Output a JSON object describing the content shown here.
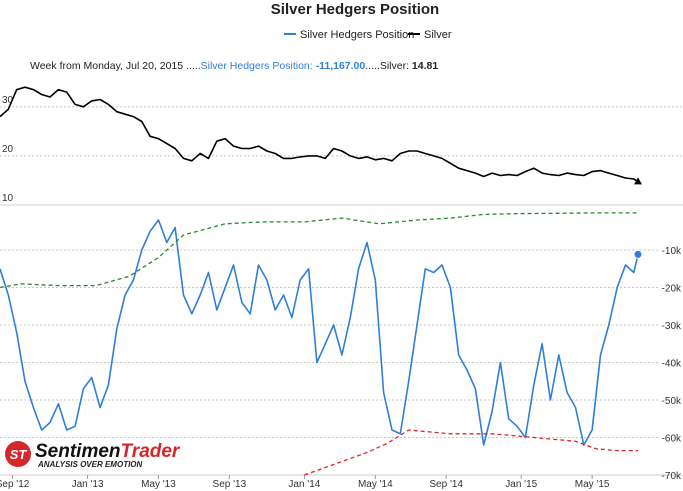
{
  "chart_data": {
    "type": "line",
    "title": "Silver Hedgers Position",
    "legend": {
      "placement": "top-center",
      "entries": [
        {
          "label": "Silver Hedgers Position",
          "color": "#2f7ed8"
        },
        {
          "label": "Silver",
          "color": "#000000"
        }
      ]
    },
    "tooltip": {
      "week_label": "Week from Monday, Jul 20, 2015 .....",
      "hedgers_label": "Silver Hedgers Position: ",
      "hedgers_value": "-11,167.00",
      "separator": ".....",
      "silver_label": "Silver: ",
      "silver_value": "14.81"
    },
    "x_axis": {
      "labels": [
        "Sep '12",
        "Jan '13",
        "May '13",
        "Sep '13",
        "Jan '14",
        "May '14",
        "Sep '14",
        "Jan '15",
        "May '15"
      ],
      "label_dates": [
        "2012-09-03",
        "2013-01-07",
        "2013-05-06",
        "2013-09-02",
        "2014-01-06",
        "2014-05-05",
        "2014-09-01",
        "2015-01-05",
        "2015-05-04"
      ],
      "range": [
        "2012-08-13",
        "2015-07-20"
      ]
    },
    "silver_axis": {
      "ticks": [
        "10",
        "20",
        "30"
      ],
      "tick_values": [
        10,
        20,
        30
      ],
      "range": [
        10,
        37.5
      ],
      "side": "left",
      "grid": true
    },
    "hedgers_axis": {
      "ticks": [
        "-10k",
        "-20k",
        "-30k",
        "-40k",
        "-50k",
        "-60k",
        "-70k"
      ],
      "tick_values": [
        -10000,
        -20000,
        -30000,
        -40000,
        "-50000",
        -60000,
        -70000
      ],
      "range": [
        -70000,
        2000
      ],
      "side": "right",
      "grid": true
    },
    "series": [
      {
        "name": "Silver Hedgers Position",
        "color": "#2f7ed8",
        "axis": "hedgers",
        "x": [
          "2012-08-13",
          "2012-08-27",
          "2012-09-10",
          "2012-09-24",
          "2012-10-08",
          "2012-10-22",
          "2012-11-05",
          "2012-11-19",
          "2012-12-03",
          "2012-12-17",
          "2012-12-31",
          "2013-01-14",
          "2013-01-28",
          "2013-02-11",
          "2013-02-25",
          "2013-03-11",
          "2013-03-25",
          "2013-04-08",
          "2013-04-22",
          "2013-05-06",
          "2013-05-20",
          "2013-06-03",
          "2013-06-17",
          "2013-07-01",
          "2013-07-15",
          "2013-07-29",
          "2013-08-12",
          "2013-08-26",
          "2013-09-09",
          "2013-09-23",
          "2013-10-07",
          "2013-10-21",
          "2013-11-04",
          "2013-11-18",
          "2013-12-02",
          "2013-12-16",
          "2013-12-30",
          "2014-01-13",
          "2014-01-27",
          "2014-02-10",
          "2014-02-24",
          "2014-03-10",
          "2014-03-24",
          "2014-04-07",
          "2014-04-21",
          "2014-05-05",
          "2014-05-19",
          "2014-06-02",
          "2014-06-16",
          "2014-06-30",
          "2014-07-14",
          "2014-07-28",
          "2014-08-11",
          "2014-08-25",
          "2014-09-08",
          "2014-09-22",
          "2014-10-06",
          "2014-10-20",
          "2014-11-03",
          "2014-11-17",
          "2014-12-01",
          "2014-12-15",
          "2014-12-29",
          "2015-01-12",
          "2015-01-26",
          "2015-02-09",
          "2015-02-23",
          "2015-03-09",
          "2015-03-23",
          "2015-04-06",
          "2015-04-20",
          "2015-05-04",
          "2015-05-18",
          "2015-06-01",
          "2015-06-15",
          "2015-06-29",
          "2015-07-13",
          "2015-07-20"
        ],
        "values": [
          -15000,
          -22000,
          -32000,
          -45000,
          -52000,
          -58000,
          -56000,
          -51000,
          -58000,
          -57000,
          -47000,
          -44000,
          -52000,
          -46000,
          -31000,
          -22000,
          -18000,
          -10000,
          -5000,
          -2000,
          -8000,
          -4000,
          -22000,
          -27000,
          -22000,
          -16000,
          -26000,
          -20000,
          -14000,
          -24000,
          -27000,
          -14000,
          -18000,
          -26000,
          -22000,
          -28000,
          -18000,
          -15000,
          -40000,
          -35000,
          -30000,
          -38000,
          -28000,
          -15000,
          -8000,
          -18000,
          -48000,
          -58000,
          -59000,
          -45000,
          -30000,
          -15000,
          -16000,
          -14000,
          -20000,
          -38000,
          -42000,
          -47000,
          -62000,
          -53000,
          -40000,
          -55000,
          -57000,
          -60000,
          -46000,
          -35000,
          -50000,
          -38000,
          -48000,
          -52000,
          -62000,
          -58000,
          -38000,
          -30000,
          -20000,
          -14000,
          -16000,
          -11167
        ]
      },
      {
        "name": "Silver",
        "color": "#000000",
        "axis": "silver",
        "x": [
          "2012-08-13",
          "2012-08-27",
          "2012-09-10",
          "2012-09-24",
          "2012-10-08",
          "2012-10-22",
          "2012-11-05",
          "2012-11-19",
          "2012-12-03",
          "2012-12-17",
          "2012-12-31",
          "2013-01-14",
          "2013-01-28",
          "2013-02-11",
          "2013-02-25",
          "2013-03-11",
          "2013-03-25",
          "2013-04-08",
          "2013-04-22",
          "2013-05-06",
          "2013-05-20",
          "2013-06-03",
          "2013-06-17",
          "2013-07-01",
          "2013-07-15",
          "2013-07-29",
          "2013-08-12",
          "2013-08-26",
          "2013-09-09",
          "2013-09-23",
          "2013-10-07",
          "2013-10-21",
          "2013-11-04",
          "2013-11-18",
          "2013-12-02",
          "2013-12-16",
          "2013-12-30",
          "2014-01-13",
          "2014-01-27",
          "2014-02-10",
          "2014-02-24",
          "2014-03-10",
          "2014-03-24",
          "2014-04-07",
          "2014-04-21",
          "2014-05-05",
          "2014-05-19",
          "2014-06-02",
          "2014-06-16",
          "2014-06-30",
          "2014-07-14",
          "2014-07-28",
          "2014-08-11",
          "2014-08-25",
          "2014-09-08",
          "2014-09-22",
          "2014-10-06",
          "2014-10-20",
          "2014-11-03",
          "2014-11-17",
          "2014-12-01",
          "2014-12-15",
          "2014-12-29",
          "2015-01-12",
          "2015-01-26",
          "2015-02-09",
          "2015-02-23",
          "2015-03-09",
          "2015-03-23",
          "2015-04-06",
          "2015-04-20",
          "2015-05-04",
          "2015-05-18",
          "2015-06-01",
          "2015-06-15",
          "2015-06-29",
          "2015-07-13",
          "2015-07-20"
        ],
        "values": [
          28.0,
          29.5,
          33.5,
          34.0,
          33.5,
          32.5,
          32.0,
          33.5,
          33.0,
          30.5,
          30.0,
          31.2,
          31.5,
          30.5,
          29.0,
          28.5,
          28.0,
          27.0,
          24.0,
          23.5,
          22.5,
          21.5,
          19.5,
          19.0,
          20.5,
          19.5,
          23.0,
          23.5,
          22.0,
          21.5,
          21.5,
          22.0,
          21.0,
          20.5,
          19.5,
          19.5,
          19.8,
          20.0,
          20.0,
          19.5,
          21.5,
          21.0,
          20.0,
          19.5,
          19.8,
          19.2,
          19.5,
          19.0,
          20.5,
          21.0,
          21.0,
          20.5,
          20.0,
          19.5,
          18.5,
          17.5,
          17.0,
          16.5,
          15.8,
          16.5,
          16.0,
          16.2,
          16.0,
          16.8,
          17.5,
          16.5,
          16.2,
          16.0,
          16.5,
          16.2,
          16.0,
          16.8,
          17.0,
          16.5,
          16.0,
          15.5,
          15.3,
          14.81
        ]
      },
      {
        "name": "",
        "color": "#2a8a2a",
        "style": "dashed",
        "axis": "hedgers",
        "x": [
          "2012-08-13",
          "2012-09-17",
          "2012-11-19",
          "2013-01-21",
          "2013-03-18",
          "2013-05-06",
          "2013-06-17",
          "2013-08-26",
          "2013-10-28",
          "2014-01-06",
          "2014-03-10",
          "2014-05-12",
          "2014-07-14",
          "2014-09-08",
          "2014-11-03",
          "2015-01-05",
          "2015-03-09",
          "2015-05-04",
          "2015-07-20"
        ],
        "values": [
          -20000,
          -19000,
          -19500,
          -19500,
          -17000,
          -12000,
          -6000,
          -3000,
          -2500,
          -2500,
          -1500,
          -3000,
          -2000,
          -1500,
          -500,
          -300,
          -200,
          -100,
          -100
        ]
      },
      {
        "name": "",
        "color": "#e0242b",
        "style": "dashed",
        "axis": "hedgers",
        "x": [
          "2014-01-06",
          "2014-02-10",
          "2014-03-17",
          "2014-04-21",
          "2014-05-26",
          "2014-06-30",
          "2014-08-04",
          "2014-09-08",
          "2014-10-13",
          "2014-11-17",
          "2014-12-22",
          "2015-01-26",
          "2015-03-02",
          "2015-04-06",
          "2015-05-11",
          "2015-06-15",
          "2015-07-20"
        ],
        "values": [
          -70000,
          -68000,
          -66000,
          -64000,
          -61500,
          -58000,
          -58500,
          -59000,
          -59000,
          -59000,
          -59500,
          -60000,
          -60500,
          -61000,
          -63000,
          -63500,
          -63500
        ]
      }
    ]
  },
  "logo": {
    "part1": "Sentimen",
    "part2": "Trader",
    "tagline": "ANALYSIS OVER EMOTION",
    "mark": "ST",
    "mark_color": "#d7262b"
  }
}
